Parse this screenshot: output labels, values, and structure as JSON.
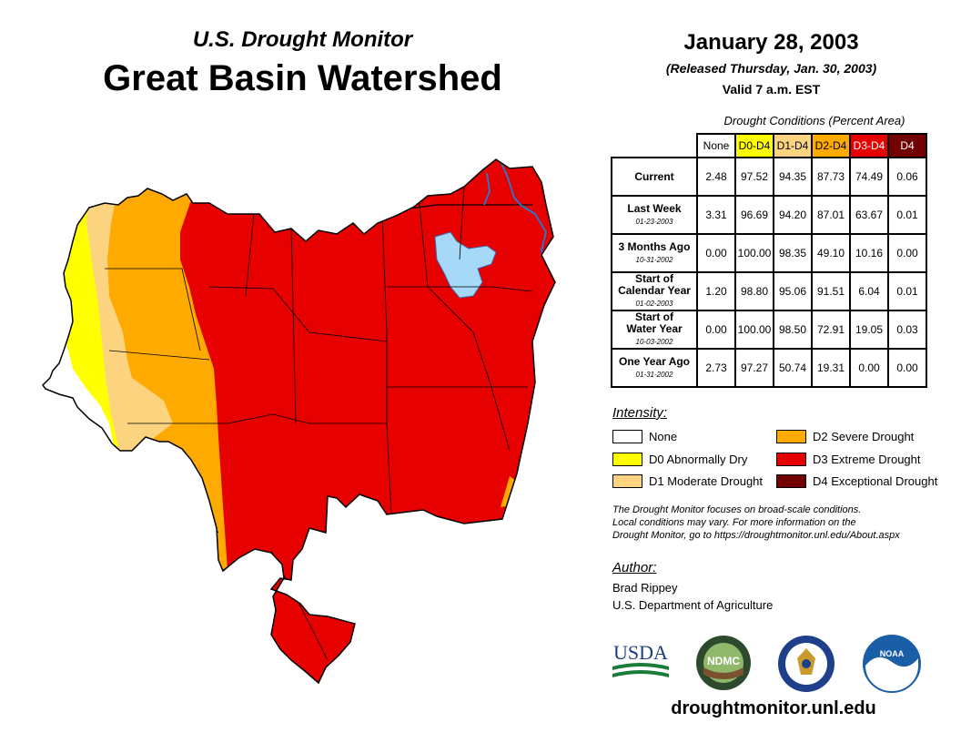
{
  "title": {
    "subtitle": "U.S. Drought Monitor",
    "region": "Great Basin Watershed"
  },
  "date": {
    "map_date": "January 28, 2003",
    "released": "(Released Thursday, Jan. 30, 2003)",
    "valid": "Valid 7 a.m. EST"
  },
  "table": {
    "caption": "Drought Conditions (Percent Area)",
    "columns": [
      "None",
      "D0-D4",
      "D1-D4",
      "D2-D4",
      "D3-D4",
      "D4"
    ],
    "column_colors": [
      "#ffffff",
      "#ffff00",
      "#fcd37f",
      "#ffaa00",
      "#e60000",
      "#730000"
    ],
    "rows": [
      {
        "label": "Current",
        "date": "",
        "values": [
          "2.48",
          "97.52",
          "94.35",
          "87.73",
          "74.49",
          "0.06"
        ]
      },
      {
        "label": "Last Week",
        "date": "01-23-2003",
        "values": [
          "3.31",
          "96.69",
          "94.20",
          "87.01",
          "63.67",
          "0.01"
        ]
      },
      {
        "label": "3 Months Ago",
        "date": "10-31-2002",
        "values": [
          "0.00",
          "100.00",
          "98.35",
          "49.10",
          "10.16",
          "0.00"
        ]
      },
      {
        "label": "Start of\nCalendar Year",
        "date": "01-02-2003",
        "values": [
          "1.20",
          "98.80",
          "95.06",
          "91.51",
          "6.04",
          "0.01"
        ]
      },
      {
        "label": "Start of\nWater Year",
        "date": "10-03-2002",
        "values": [
          "0.00",
          "100.00",
          "98.50",
          "72.91",
          "19.05",
          "0.03"
        ]
      },
      {
        "label": "One Year Ago",
        "date": "01-31-2002",
        "values": [
          "2.73",
          "97.27",
          "50.74",
          "19.31",
          "0.00",
          "0.00"
        ]
      }
    ]
  },
  "legend": {
    "title": "Intensity:",
    "items": [
      {
        "label": "None",
        "color": "#ffffff"
      },
      {
        "label": "D0 Abnormally Dry",
        "color": "#ffff00"
      },
      {
        "label": "D1 Moderate Drought",
        "color": "#fcd37f"
      },
      {
        "label": "D2 Severe Drought",
        "color": "#ffaa00"
      },
      {
        "label": "D3 Extreme Drought",
        "color": "#e60000"
      },
      {
        "label": "D4 Exceptional Drought",
        "color": "#730000"
      }
    ]
  },
  "note": {
    "line1": "The Drought Monitor focuses on broad-scale conditions.",
    "line2": "Local conditions may vary. For more information on the",
    "line3": "Drought Monitor, go to https://droughtmonitor.unl.edu/About.aspx"
  },
  "author": {
    "heading": "Author:",
    "name": "Brad Rippey",
    "org": "U.S. Department of Agriculture"
  },
  "logos": {
    "usda": "USDA",
    "ndmc": "NDMC",
    "noaa": "NOAA"
  },
  "url": "droughtmonitor.unl.edu",
  "colors": {
    "lake": "#a6d9f7",
    "river": "#1e7fd6"
  }
}
